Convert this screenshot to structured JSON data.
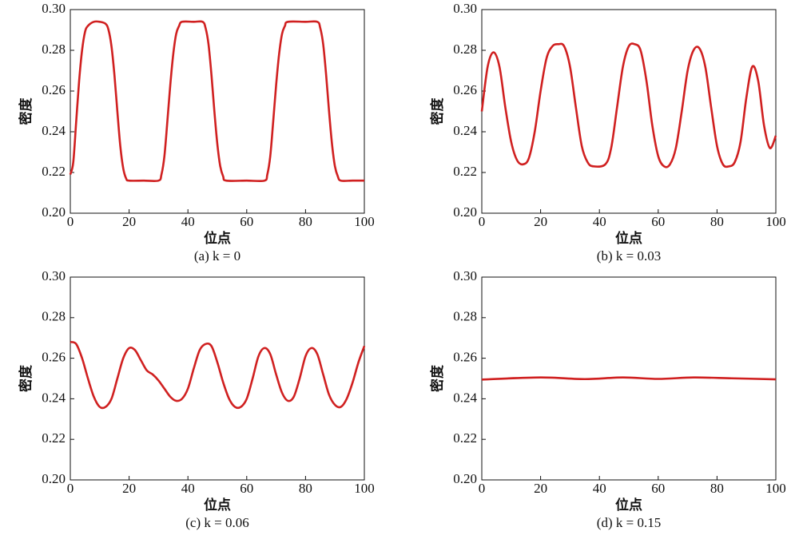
{
  "chart_data": [
    {
      "type": "line",
      "caption": "(a) k = 0",
      "xlabel": "位点",
      "ylabel": "密度",
      "color": "#d02020",
      "xlim": [
        0,
        100
      ],
      "ylim": [
        0.2,
        0.3
      ],
      "xticks": [
        0,
        20,
        40,
        60,
        80,
        100
      ],
      "yticks": [
        {
          "value": 0.2,
          "label": "0.20"
        },
        0.22,
        0.24,
        0.26,
        0.28,
        {
          "value": 0.3,
          "label": "0.30"
        }
      ],
      "x": [
        0,
        1,
        2,
        3,
        4,
        5,
        6,
        8,
        10,
        12,
        13,
        14,
        15,
        16,
        17,
        18,
        19,
        20,
        25,
        30,
        31,
        32,
        33,
        34,
        35,
        36,
        37,
        38,
        42,
        45,
        46,
        47,
        48,
        49,
        50,
        51,
        52,
        53,
        60,
        66,
        67,
        68,
        69,
        70,
        71,
        72,
        73,
        74,
        80,
        84,
        85,
        86,
        87,
        88,
        89,
        90,
        91,
        92,
        96,
        100
      ],
      "values": [
        0.219,
        0.225,
        0.245,
        0.265,
        0.28,
        0.289,
        0.292,
        0.294,
        0.294,
        0.293,
        0.29,
        0.282,
        0.268,
        0.25,
        0.233,
        0.222,
        0.217,
        0.216,
        0.216,
        0.216,
        0.219,
        0.228,
        0.245,
        0.263,
        0.278,
        0.288,
        0.292,
        0.294,
        0.294,
        0.294,
        0.291,
        0.283,
        0.268,
        0.25,
        0.234,
        0.223,
        0.218,
        0.216,
        0.216,
        0.216,
        0.219,
        0.228,
        0.245,
        0.263,
        0.278,
        0.288,
        0.292,
        0.294,
        0.294,
        0.294,
        0.291,
        0.283,
        0.268,
        0.25,
        0.234,
        0.223,
        0.218,
        0.216,
        0.216,
        0.216
      ]
    },
    {
      "type": "line",
      "caption": "(b) k = 0.03",
      "xlabel": "位点",
      "ylabel": "密度",
      "color": "#d02020",
      "xlim": [
        0,
        100
      ],
      "ylim": [
        0.2,
        0.3
      ],
      "xticks": [
        0,
        20,
        40,
        60,
        80,
        100
      ],
      "yticks": [
        {
          "value": 0.2,
          "label": "0.20"
        },
        0.22,
        0.24,
        0.26,
        0.28,
        {
          "value": 0.3,
          "label": "0.30"
        }
      ],
      "x": [
        0,
        2,
        4,
        6,
        8,
        10,
        12,
        14,
        16,
        18,
        20,
        22,
        24,
        26,
        28,
        30,
        32,
        34,
        36,
        38,
        42,
        44,
        46,
        48,
        50,
        52,
        54,
        56,
        58,
        60,
        62,
        64,
        66,
        68,
        70,
        72,
        74,
        76,
        78,
        80,
        82,
        84,
        86,
        88,
        90,
        92,
        94,
        96,
        98,
        100
      ],
      "values": [
        0.25,
        0.272,
        0.279,
        0.272,
        0.252,
        0.235,
        0.226,
        0.224,
        0.227,
        0.24,
        0.26,
        0.276,
        0.282,
        0.283,
        0.282,
        0.272,
        0.252,
        0.233,
        0.225,
        0.223,
        0.224,
        0.232,
        0.252,
        0.272,
        0.282,
        0.283,
        0.28,
        0.265,
        0.243,
        0.228,
        0.223,
        0.224,
        0.232,
        0.25,
        0.27,
        0.28,
        0.281,
        0.272,
        0.252,
        0.233,
        0.224,
        0.223,
        0.225,
        0.235,
        0.257,
        0.272,
        0.265,
        0.243,
        0.232,
        0.238
      ]
    },
    {
      "type": "line",
      "caption": "(c) k = 0.06",
      "xlabel": "位点",
      "ylabel": "密度",
      "color": "#d02020",
      "xlim": [
        0,
        100
      ],
      "ylim": [
        0.2,
        0.3
      ],
      "xticks": [
        0,
        20,
        40,
        60,
        80,
        100
      ],
      "yticks": [
        {
          "value": 0.2,
          "label": "0.20"
        },
        0.22,
        0.24,
        0.26,
        0.28,
        {
          "value": 0.3,
          "label": "0.30"
        }
      ],
      "x": [
        0,
        2,
        4,
        6,
        8,
        10,
        12,
        14,
        16,
        18,
        20,
        22,
        24,
        26,
        28,
        30,
        32,
        34,
        36,
        38,
        40,
        42,
        44,
        46,
        48,
        50,
        52,
        54,
        56,
        58,
        60,
        62,
        64,
        66,
        68,
        70,
        72,
        74,
        76,
        78,
        80,
        82,
        84,
        86,
        88,
        90,
        92,
        94,
        96,
        98,
        100
      ],
      "values": [
        0.268,
        0.267,
        0.26,
        0.25,
        0.241,
        0.236,
        0.236,
        0.24,
        0.25,
        0.26,
        0.265,
        0.264,
        0.259,
        0.254,
        0.252,
        0.249,
        0.245,
        0.241,
        0.239,
        0.24,
        0.245,
        0.255,
        0.264,
        0.267,
        0.266,
        0.258,
        0.248,
        0.24,
        0.236,
        0.236,
        0.24,
        0.25,
        0.261,
        0.265,
        0.262,
        0.252,
        0.243,
        0.239,
        0.241,
        0.25,
        0.261,
        0.265,
        0.262,
        0.252,
        0.242,
        0.237,
        0.236,
        0.24,
        0.248,
        0.258,
        0.266
      ]
    },
    {
      "type": "line",
      "caption": "(d) k = 0.15",
      "xlabel": "位点",
      "ylabel": "密度",
      "color": "#d02020",
      "xlim": [
        0,
        100
      ],
      "ylim": [
        0.2,
        0.3
      ],
      "xticks": [
        0,
        20,
        40,
        60,
        80,
        100
      ],
      "yticks": [
        {
          "value": 0.2,
          "label": "0.20"
        },
        0.22,
        0.24,
        0.26,
        0.28,
        {
          "value": 0.3,
          "label": "0.30"
        }
      ],
      "x": [
        0,
        20,
        35,
        48,
        60,
        72,
        85,
        100
      ],
      "values": [
        0.2495,
        0.2505,
        0.2497,
        0.2505,
        0.2498,
        0.2505,
        0.2501,
        0.2496
      ]
    }
  ]
}
